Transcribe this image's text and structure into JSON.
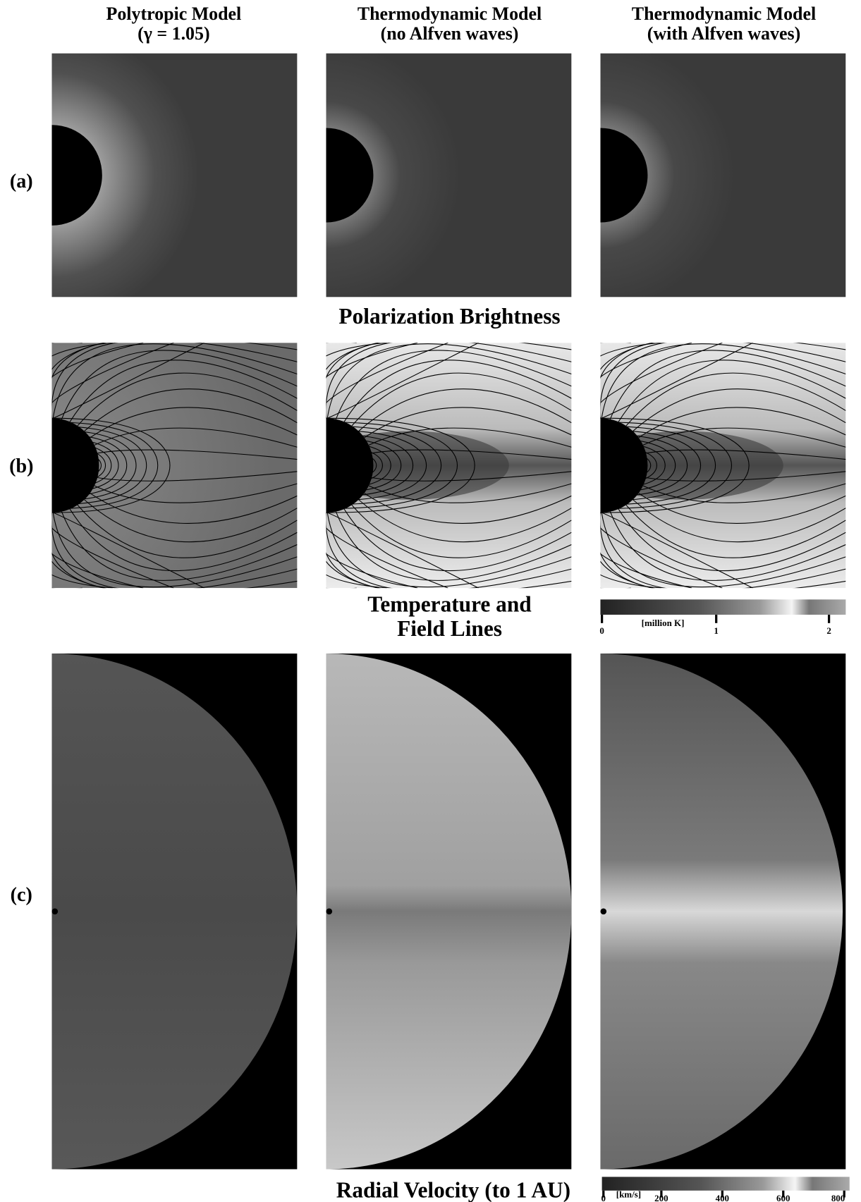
{
  "columns": [
    {
      "title": "Polytropic Model",
      "subtitle": "(γ = 1.05)"
    },
    {
      "title": "Thermodynamic Model",
      "subtitle": "(no Alfven waves)"
    },
    {
      "title": "Thermodynamic Model",
      "subtitle": "(with Alfven waves)"
    }
  ],
  "rows": [
    {
      "label": "(a)",
      "caption": "Polarization Brightness"
    },
    {
      "label": "(b)",
      "caption_lines": [
        "Temperature and",
        "Field Lines"
      ]
    },
    {
      "label": "(c)",
      "caption": "Radial Velocity (to 1 AU)"
    }
  ],
  "colorbars": {
    "temperature": {
      "unit": "[million K]",
      "ticks": [
        "0",
        "1",
        "2"
      ]
    },
    "velocity": {
      "unit": "[km/s]",
      "ticks": [
        "0",
        "200",
        "400",
        "600",
        "800"
      ]
    }
  }
}
